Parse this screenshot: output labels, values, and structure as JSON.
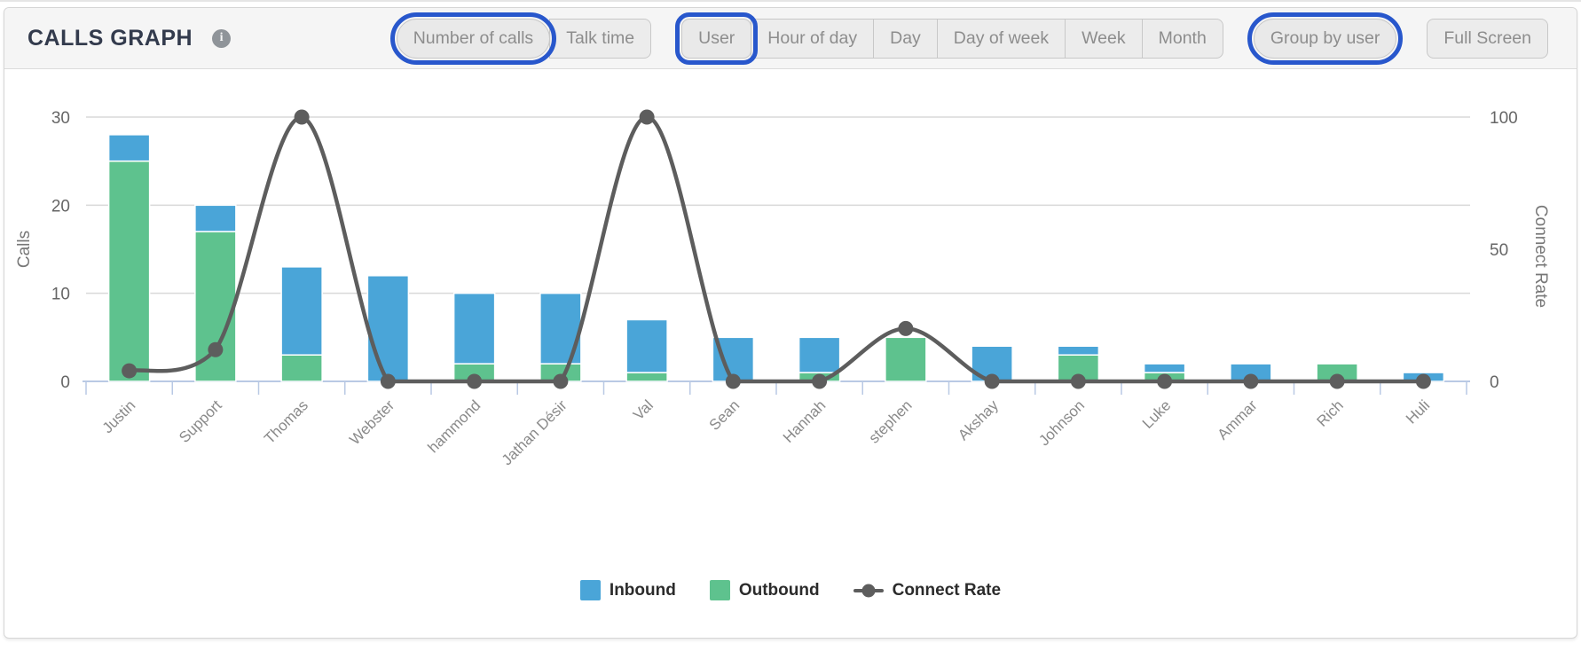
{
  "header": {
    "title": "CALLS GRAPH",
    "view_toggle": [
      {
        "label": "Number of calls",
        "selected": true
      },
      {
        "label": "Talk time",
        "selected": false
      }
    ],
    "grouping_toggle": [
      {
        "label": "User",
        "selected": true
      },
      {
        "label": "Hour of day",
        "selected": false
      },
      {
        "label": "Day",
        "selected": false
      },
      {
        "label": "Day of week",
        "selected": false
      },
      {
        "label": "Week",
        "selected": false
      },
      {
        "label": "Month",
        "selected": false
      }
    ],
    "group_by_user": {
      "label": "Group by user",
      "selected": true
    },
    "full_screen": {
      "label": "Full Screen",
      "selected": false
    }
  },
  "colors": {
    "inbound": "#4aa5d8",
    "outbound": "#5ec28e",
    "connect_rate": "#5d5d5d",
    "selected_ring": "#2857cc",
    "grid": "#d9d9d9",
    "baseline": "#b9c9e4",
    "tick_text": "#666666",
    "axis_title_text": "#777777",
    "x_label_text": "#8a8a8a"
  },
  "chart_data": {
    "type": "bar",
    "subtype": "stacked-bar with line overlay, dual y-axis",
    "categories": [
      "Justin",
      "Support",
      "Thomas",
      "Webster",
      "hammond",
      "Jathan Désir",
      "Val",
      "Sean",
      "Hannah",
      "stephen",
      "Akshay",
      "Johnson",
      "Luke",
      "Ammar",
      "Rich",
      "Huli"
    ],
    "series": [
      {
        "name": "Inbound",
        "type": "bar",
        "axis": "left",
        "values": [
          3,
          3,
          10,
          12,
          8,
          8,
          6,
          5,
          4,
          0,
          4,
          1,
          1,
          2,
          0,
          1
        ]
      },
      {
        "name": "Outbound",
        "type": "bar",
        "axis": "left",
        "values": [
          25,
          17,
          3,
          0,
          2,
          2,
          1,
          0,
          1,
          5,
          0,
          3,
          1,
          0,
          2,
          0
        ]
      },
      {
        "name": "Connect Rate",
        "type": "line",
        "axis": "right",
        "values": [
          4,
          12,
          100,
          0,
          0,
          0,
          100,
          0,
          0,
          20,
          0,
          0,
          0,
          0,
          0,
          0
        ]
      }
    ],
    "stack_order_bottom_to_top": [
      "Outbound",
      "Inbound"
    ],
    "left_axis": {
      "label": "Calls",
      "ticks": [
        0,
        10,
        20,
        30
      ],
      "range": [
        0,
        30
      ]
    },
    "right_axis": {
      "label": "Connect Rate",
      "ticks": [
        0,
        50,
        100
      ],
      "range": [
        0,
        100
      ]
    },
    "legend": [
      "Inbound",
      "Outbound",
      "Connect Rate"
    ],
    "legend_position": "bottom",
    "grid": true
  }
}
